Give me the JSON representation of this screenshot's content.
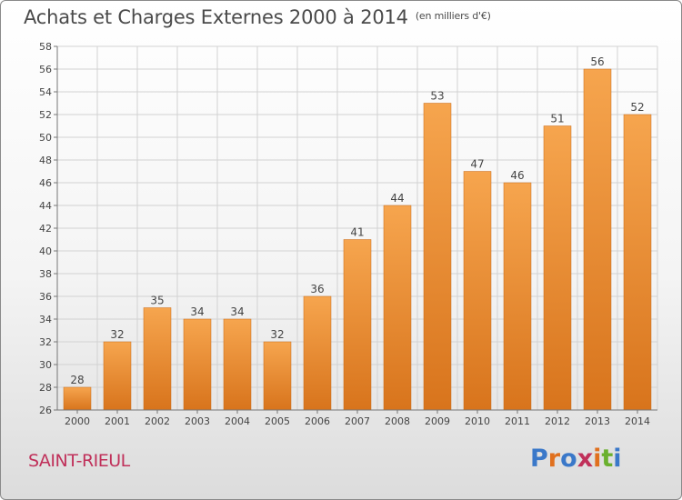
{
  "header": {
    "title": "Achats et Charges Externes 2000 à 2014",
    "unit": "(en milliers d'€)"
  },
  "footer": {
    "town": "SAINT-RIEUL",
    "logo_text": "Proxiti",
    "logo_colors": [
      "#3a78c9",
      "#e0701e",
      "#3a78c9",
      "#c0305a",
      "#e0701e",
      "#6ab02e",
      "#3a78c9"
    ]
  },
  "colors": {
    "bar_light": "#f6a54e",
    "bar_dark": "#d8741c",
    "grid": "#d2d2d2",
    "axis_text": "#444444"
  },
  "chart_data": {
    "type": "bar",
    "title": "Achats et Charges Externes 2000 à 2014",
    "subtitle": "(en milliers d'€)",
    "xlabel": "",
    "ylabel": "",
    "categories": [
      "2000",
      "2001",
      "2002",
      "2003",
      "2004",
      "2005",
      "2006",
      "2007",
      "2008",
      "2009",
      "2010",
      "2011",
      "2012",
      "2013",
      "2014"
    ],
    "values": [
      28,
      32,
      35,
      34,
      34,
      32,
      36,
      41,
      44,
      53,
      47,
      46,
      51,
      56,
      52
    ],
    "ylim": [
      26,
      58
    ],
    "yticks": [
      26,
      28,
      30,
      32,
      34,
      36,
      38,
      40,
      42,
      44,
      46,
      48,
      50,
      52,
      54,
      56,
      58
    ],
    "grid": true,
    "data_labels": true
  }
}
